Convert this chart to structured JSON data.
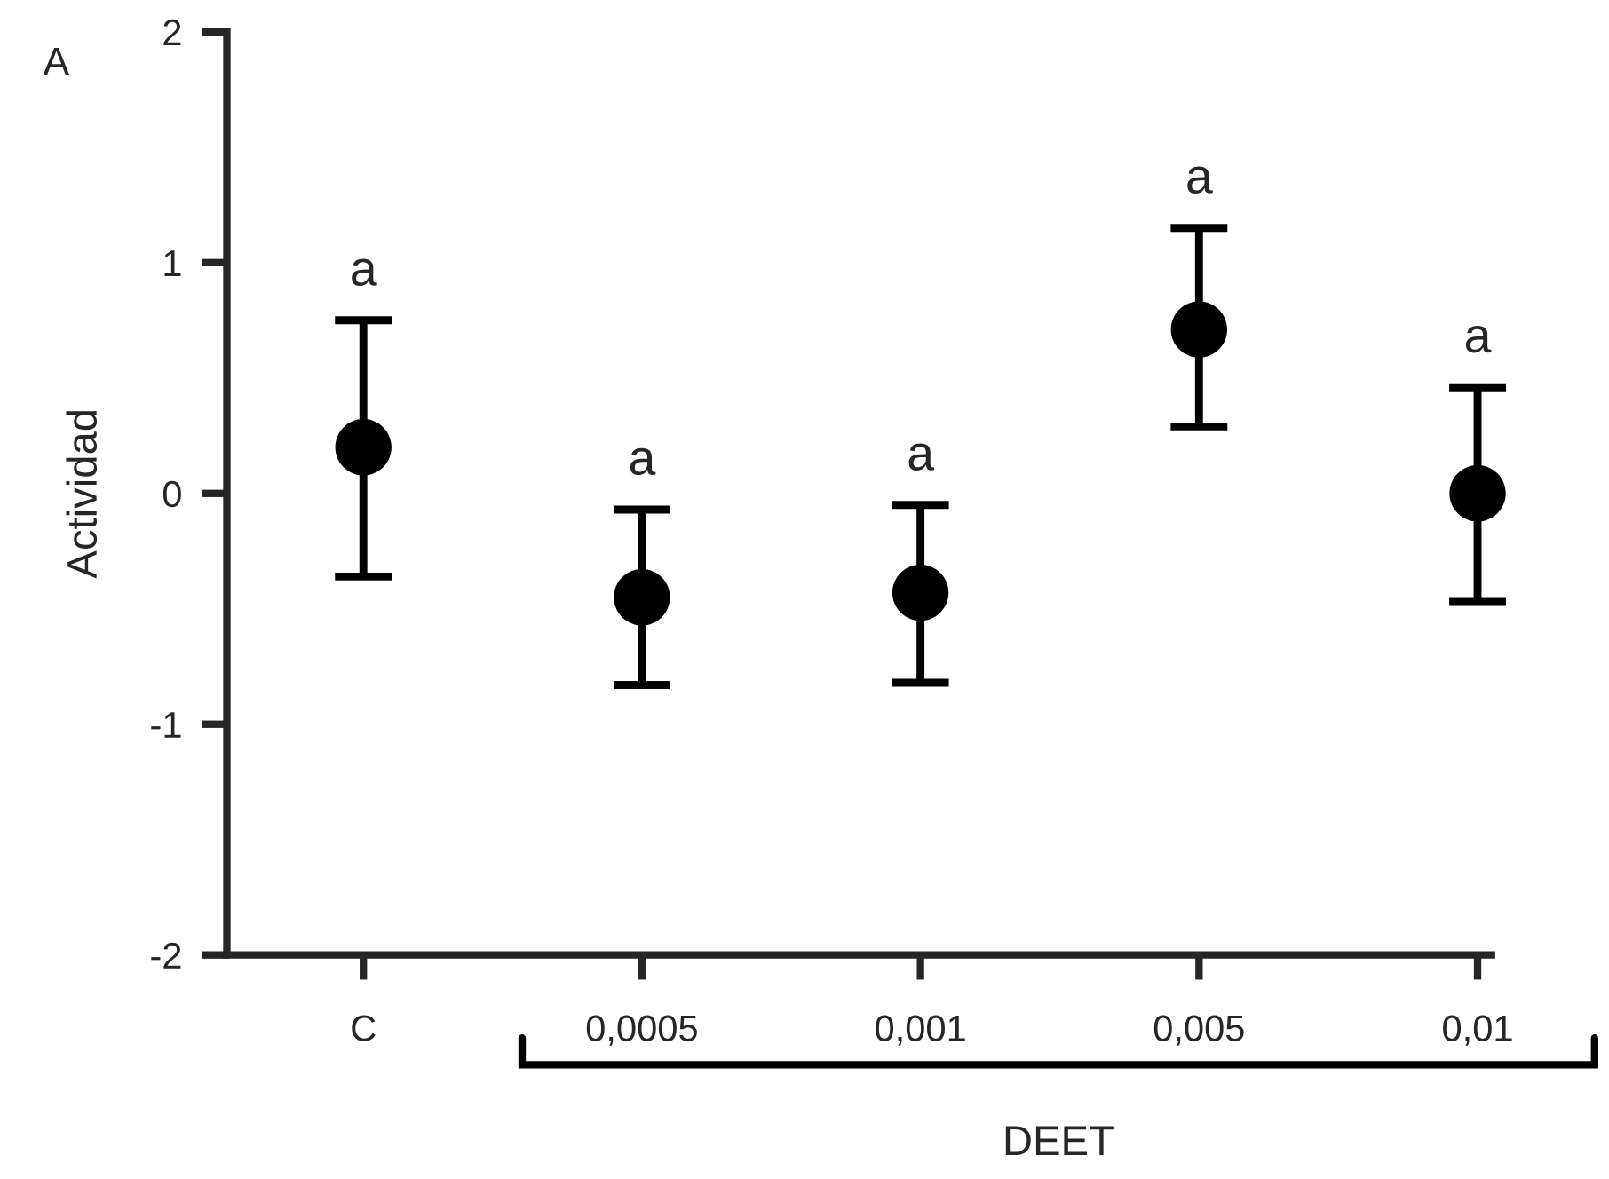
{
  "chart_data": {
    "type": "scatter",
    "ylabel": "Actividad",
    "categories": [
      "C",
      "0,0005",
      "0,001",
      "0,005",
      "0,01"
    ],
    "values": [
      0.2,
      -0.45,
      -0.43,
      0.71,
      0.0
    ],
    "errors": [
      [
        -0.36,
        0.75
      ],
      [
        -0.83,
        -0.07
      ],
      [
        -0.82,
        -0.05
      ],
      [
        0.29,
        1.15
      ],
      [
        -0.47,
        0.46
      ]
    ],
    "color": "#000000",
    "marker": "circle",
    "ylim": [
      -2,
      2
    ],
    "yticks": [
      -2,
      -1,
      0,
      1,
      2
    ],
    "grid": false,
    "annotations": [
      "a",
      "a",
      "a",
      "a",
      "a",
      "A",
      "DEET"
    ]
  }
}
